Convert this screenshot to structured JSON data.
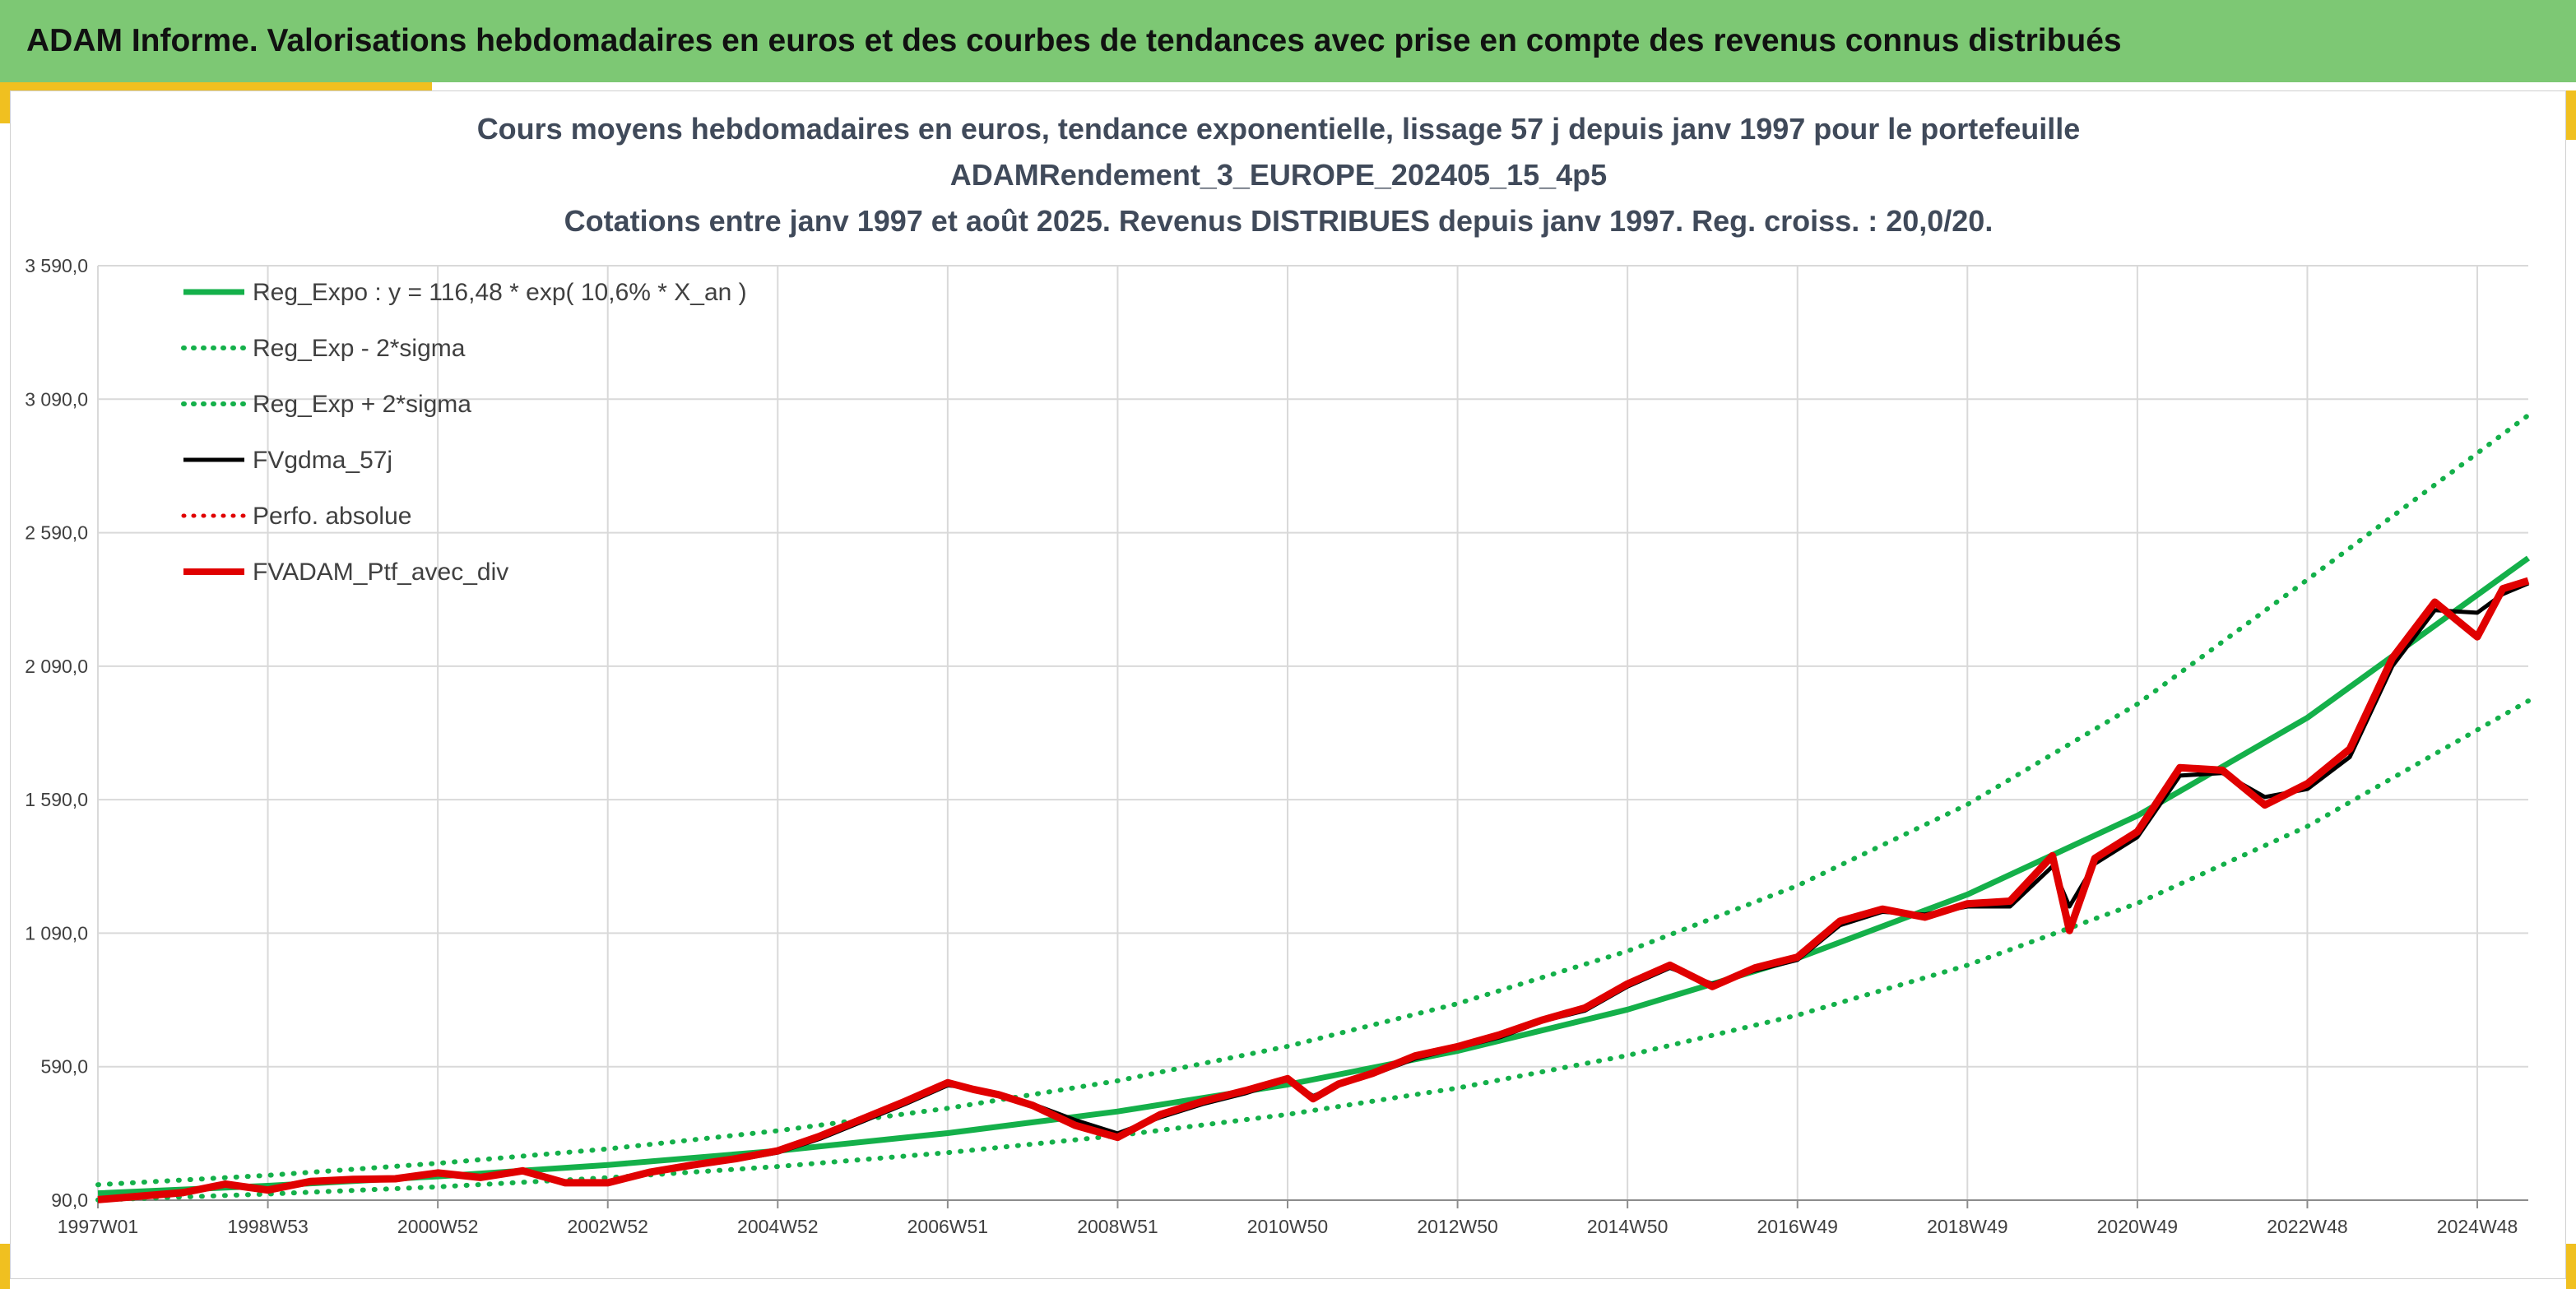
{
  "header": {
    "title": "ADAM Informe. Valorisations hebdomadaires en euros et des courbes de tendances avec prise en compte des revenus connus distribués"
  },
  "colors": {
    "header_bg": "#7dc874",
    "accent": "#f0c020",
    "reg_green": "#14b04a",
    "fv_black": "#000000",
    "perf_red": "#e00000"
  },
  "chart_data": {
    "type": "line",
    "title_lines": [
      "Cours moyens hebdomadaires en euros, tendance exponentielle, lissage 57 j depuis janv 1997 pour le portefeuille",
      "ADAMRendement_3_EUROPE_202405_15_4p5",
      "Cotations entre janv 1997 et août 2025. Revenus DISTRIBUES depuis janv 1997. Reg. croiss. : 20,0/20."
    ],
    "xlabel": "",
    "ylabel": "",
    "ylim": [
      90,
      3590
    ],
    "xlim": [
      1997.0,
      2025.6
    ],
    "grid": true,
    "legend_position": "top-left",
    "y_ticks": [
      90,
      590,
      1090,
      1590,
      2090,
      2590,
      3090,
      3590
    ],
    "y_tick_labels": [
      "90,0",
      "590,0",
      "1 090,0",
      "1 590,0",
      "2 090,0",
      "2 590,0",
      "3 090,0",
      "3 590,0"
    ],
    "x_ticks": [
      1997.0,
      1999.0,
      2001.0,
      2003.0,
      2005.0,
      2007.0,
      2009.0,
      2011.0,
      2013.0,
      2015.0,
      2017.0,
      2019.0,
      2021.0,
      2023.0,
      2025.0
    ],
    "x_tick_labels": [
      "1997W01",
      "1998W53",
      "2000W52",
      "2002W52",
      "2004W52",
      "2006W51",
      "2008W51",
      "2010W50",
      "2012W50",
      "2014W50",
      "2016W49",
      "2018W49",
      "2020W49",
      "2022W48",
      "2024W48"
    ],
    "series": [
      {
        "name": "Reg_Expo : y = 116,48 * exp( 10,6% *  X_an )",
        "style": "solid",
        "color": "#14b04a",
        "width": 7,
        "x": [
          1997.0,
          1999.0,
          2001.0,
          2003.0,
          2005.0,
          2007.0,
          2009.0,
          2011.0,
          2013.0,
          2015.0,
          2017.0,
          2019.0,
          2021.0,
          2023.0,
          2025.6
        ],
        "values": [
          116,
          144,
          179,
          222,
          275,
          341,
          422,
          523,
          649,
          804,
          996,
          1235,
          1530,
          1897,
          2495
        ]
      },
      {
        "name": "Reg_Exp - 2*sigma",
        "style": "dotted",
        "color": "#14b04a",
        "width": 6,
        "x": [
          1997.0,
          1999.0,
          2001.0,
          2003.0,
          2005.0,
          2007.0,
          2009.0,
          2011.0,
          2013.0,
          2015.0,
          2017.0,
          2019.0,
          2021.0,
          2023.0,
          2025.6
        ],
        "values": [
          91,
          113,
          140,
          174,
          216,
          268,
          332,
          411,
          510,
          632,
          783,
          970,
          1202,
          1490,
          1960
        ]
      },
      {
        "name": "Reg_Exp + 2*sigma",
        "style": "dotted",
        "color": "#14b04a",
        "width": 6,
        "x": [
          1997.0,
          1999.0,
          2001.0,
          2003.0,
          2005.0,
          2007.0,
          2009.0,
          2011.0,
          2013.0,
          2015.0,
          2017.0,
          2019.0,
          2021.0,
          2023.0,
          2025.6
        ],
        "values": [
          148,
          183,
          228,
          282,
          350,
          434,
          537,
          666,
          826,
          1023,
          1268,
          1572,
          1948,
          2414,
          3030
        ]
      },
      {
        "name": "FVgdma_57j",
        "style": "solid",
        "color": "#000000",
        "width": 5,
        "x": [
          1997.0,
          1997.5,
          1998.0,
          1998.5,
          1999.0,
          1999.5,
          2000.0,
          2000.5,
          2001.0,
          2001.5,
          2002.0,
          2002.5,
          2003.0,
          2003.5,
          2004.0,
          2004.5,
          2005.0,
          2005.5,
          2006.0,
          2006.5,
          2007.0,
          2007.3,
          2007.6,
          2008.0,
          2008.5,
          2009.0,
          2009.5,
          2010.0,
          2010.5,
          2011.0,
          2011.3,
          2011.6,
          2012.0,
          2012.5,
          2013.0,
          2013.5,
          2014.0,
          2014.5,
          2015.0,
          2015.5,
          2016.0,
          2016.5,
          2017.0,
          2017.5,
          2018.0,
          2018.5,
          2019.0,
          2019.5,
          2020.0,
          2020.2,
          2020.5,
          2021.0,
          2021.5,
          2022.0,
          2022.5,
          2023.0,
          2023.5,
          2024.0,
          2024.5,
          2025.0,
          2025.3,
          2025.6
        ],
        "values": [
          90,
          103,
          115,
          145,
          130,
          158,
          165,
          172,
          188,
          178,
          197,
          160,
          157,
          190,
          218,
          240,
          268,
          320,
          385,
          450,
          520,
          510,
          490,
          450,
          390,
          340,
          400,
          450,
          490,
          540,
          480,
          520,
          560,
          620,
          660,
          700,
          760,
          800,
          890,
          960,
          900,
          950,
          990,
          1120,
          1170,
          1160,
          1190,
          1190,
          1340,
          1190,
          1350,
          1450,
          1680,
          1690,
          1600,
          1630,
          1750,
          2090,
          2300,
          2290,
          2360,
          2400
        ]
      },
      {
        "name": "Perfo. absolue",
        "style": "dotted",
        "color": "#e00000",
        "width": 5,
        "x": [
          1997.0,
          1998.0,
          1999.0,
          2000.0,
          2001.0,
          2002.0,
          2003.0,
          2004.0,
          2005.0,
          2006.0,
          2007.0,
          2008.0,
          2009.0,
          2010.0,
          2011.0,
          2012.0,
          2013.0,
          2014.0,
          2015.0,
          2016.0,
          2017.0,
          2018.0,
          2019.0,
          2020.0,
          2021.0,
          2022.0,
          2023.0,
          2024.0,
          2025.0,
          2025.6
        ],
        "values": [
          90,
          115,
          130,
          165,
          188,
          197,
          157,
          218,
          268,
          385,
          520,
          450,
          340,
          450,
          540,
          560,
          660,
          760,
          890,
          900,
          990,
          1170,
          1190,
          1340,
          1450,
          1690,
          1630,
          2090,
          2290,
          2400
        ]
      },
      {
        "name": "FVADAM_Ptf_avec_div",
        "style": "solid",
        "color": "#e00000",
        "width": 9,
        "x": [
          1997.0,
          1997.5,
          1998.0,
          1998.5,
          1999.0,
          1999.5,
          2000.0,
          2000.5,
          2001.0,
          2001.5,
          2002.0,
          2002.5,
          2003.0,
          2003.5,
          2004.0,
          2004.5,
          2005.0,
          2005.5,
          2006.0,
          2006.5,
          2007.0,
          2007.3,
          2007.6,
          2008.0,
          2008.5,
          2009.0,
          2009.5,
          2010.0,
          2010.5,
          2011.0,
          2011.3,
          2011.6,
          2012.0,
          2012.5,
          2013.0,
          2013.5,
          2014.0,
          2014.5,
          2015.0,
          2015.5,
          2016.0,
          2016.5,
          2017.0,
          2017.5,
          2018.0,
          2018.5,
          2019.0,
          2019.5,
          2020.0,
          2020.2,
          2020.5,
          2021.0,
          2021.5,
          2022.0,
          2022.5,
          2023.0,
          2023.5,
          2024.0,
          2024.5,
          2025.0,
          2025.3,
          2025.6
        ],
        "values": [
          92,
          105,
          118,
          150,
          128,
          160,
          168,
          170,
          192,
          175,
          200,
          155,
          155,
          195,
          222,
          245,
          275,
          330,
          395,
          460,
          530,
          505,
          485,
          445,
          370,
          325,
          410,
          460,
          500,
          545,
          470,
          525,
          565,
          630,
          665,
          710,
          765,
          810,
          900,
          970,
          890,
          960,
          1000,
          1135,
          1180,
          1150,
          1200,
          1210,
          1380,
          1100,
          1370,
          1470,
          1710,
          1700,
          1570,
          1650,
          1780,
          2120,
          2330,
          2200,
          2380,
          2410
        ]
      }
    ]
  }
}
